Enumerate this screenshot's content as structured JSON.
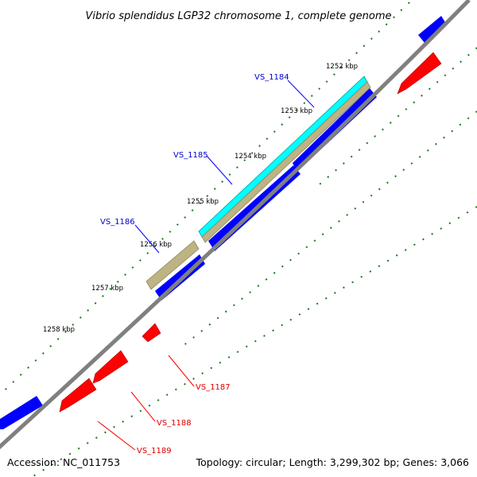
{
  "title": "Vibrio splendidus LGP32 chromosome 1, complete genome",
  "footer": {
    "accession": "Accession: NC_011753",
    "summary": "Topology: circular; Length: 3,299,302 bp; Genes: 3,066"
  },
  "colors": {
    "backbone": "#808080",
    "forward_gene": "#0000ff",
    "reverse_gene": "#ff0000",
    "highlight_cyan": "#00ffff",
    "highlight_tan": "#bdb383",
    "tick_green": "#1a7a1a",
    "label_forward": "#0000cc",
    "label_reverse": "#dd0000"
  },
  "kbp_ticks": [
    "1252 kbp",
    "1253 kbp",
    "1254 kbp",
    "1255 kbp",
    "1256 kbp",
    "1257 kbp",
    "1258 kbp"
  ],
  "gene_labels_forward": [
    "VS_1184",
    "VS_1185",
    "VS_1186"
  ],
  "gene_labels_reverse": [
    "VS_1187",
    "VS_1188",
    "VS_1189"
  ]
}
